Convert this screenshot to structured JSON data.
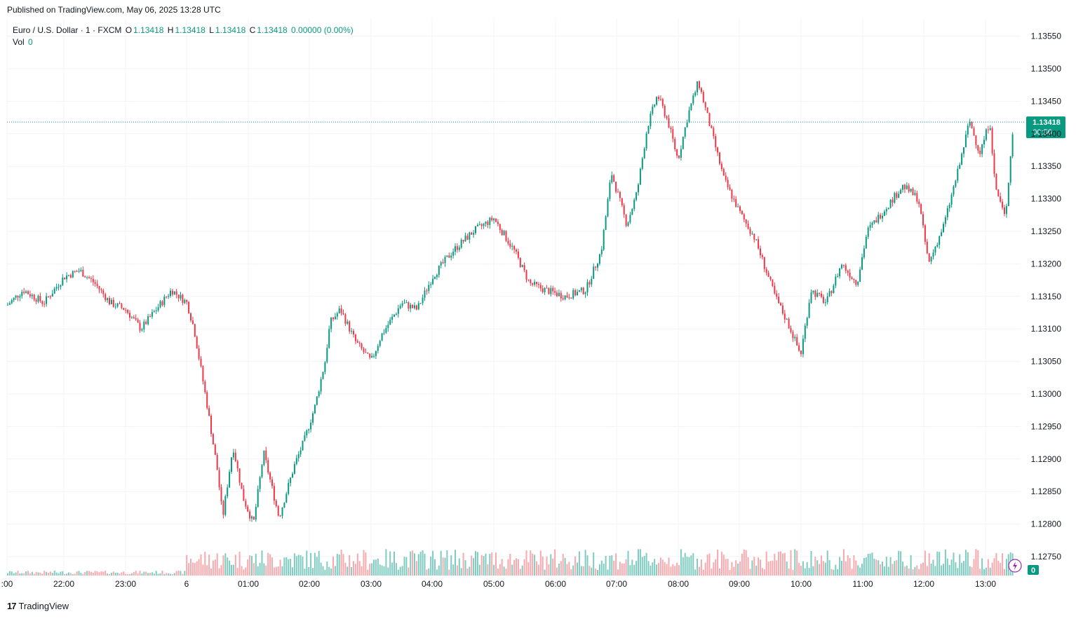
{
  "header": {
    "published": "Published on TradingView.com, May 06, 2025 13:28 UTC"
  },
  "legend": {
    "symbol": "Euro / U.S. Dollar · 1 · FXCM",
    "o_label": "O",
    "o_value": "1.13418",
    "h_label": "H",
    "h_value": "1.13418",
    "l_label": "L",
    "l_value": "1.13418",
    "c_label": "C",
    "c_value": "1.13418",
    "change": "0.00000 (0.00%)",
    "vol_label": "Vol",
    "vol_value": "0"
  },
  "price_label": {
    "price": "1.13418",
    "countdown": "00:56"
  },
  "vol_badge": "0",
  "footer": {
    "brand": "TradingView"
  },
  "colors": {
    "up": "#089981",
    "down": "#f23645",
    "vol_up": "#7fcbc0",
    "vol_down": "#f7a9ae",
    "grid": "#f0f3fa"
  },
  "chart_data": {
    "type": "candlestick",
    "symbol": "EURUSD",
    "interval": "1m",
    "y_ticks": [
      "1.13550",
      "1.13500",
      "1.13450",
      "1.13400",
      "1.13350",
      "1.13300",
      "1.13250",
      "1.13200",
      "1.13150",
      "1.13100",
      "1.13050",
      "1.13000",
      "1.12950",
      "1.12900",
      "1.12850",
      "1.12800",
      "1.12750"
    ],
    "x_ticks": [
      ":00",
      "22:00",
      "23:00",
      "6",
      "01:00",
      "02:00",
      "03:00",
      "04:00",
      "05:00",
      "06:00",
      "07:00",
      "08:00",
      "09:00",
      "10:00",
      "11:00",
      "12:00",
      "13:00"
    ],
    "ylim": [
      1.1272,
      1.1357
    ],
    "last_price": 1.13418,
    "path": [
      [
        "21:00",
        1.1313
      ],
      [
        "21:20",
        1.1316
      ],
      [
        "21:40",
        1.1314
      ],
      [
        "22:00",
        1.1318
      ],
      [
        "22:15",
        1.1319
      ],
      [
        "22:30",
        1.1317
      ],
      [
        "22:45",
        1.1314
      ],
      [
        "23:00",
        1.1313
      ],
      [
        "23:15",
        1.131
      ],
      [
        "23:30",
        1.1313
      ],
      [
        "23:45",
        1.1316
      ],
      [
        "00:00",
        1.1314
      ],
      [
        "00:07",
        1.131
      ],
      [
        "00:20",
        1.1298
      ],
      [
        "00:30",
        1.1288
      ],
      [
        "00:35",
        1.1281
      ],
      [
        "00:45",
        1.1292
      ],
      [
        "00:55",
        1.1284
      ],
      [
        "01:05",
        1.128
      ],
      [
        "01:15",
        1.1291
      ],
      [
        "01:30",
        1.1281
      ],
      [
        "01:45",
        1.1289
      ],
      [
        "01:55",
        1.1293
      ],
      [
        "02:05",
        1.1298
      ],
      [
        "02:15",
        1.1305
      ],
      [
        "02:20",
        1.1311
      ],
      [
        "02:30",
        1.1313
      ],
      [
        "02:45",
        1.1308
      ],
      [
        "03:00",
        1.1305
      ],
      [
        "03:10",
        1.1309
      ],
      [
        "03:30",
        1.1314
      ],
      [
        "03:45",
        1.1313
      ],
      [
        "04:00",
        1.1318
      ],
      [
        "04:20",
        1.1322
      ],
      [
        "04:40",
        1.1325
      ],
      [
        "05:00",
        1.1327
      ],
      [
        "05:20",
        1.1322
      ],
      [
        "05:35",
        1.1317
      ],
      [
        "05:50",
        1.1316
      ],
      [
        "06:10",
        1.1315
      ],
      [
        "06:30",
        1.1316
      ],
      [
        "06:45",
        1.1322
      ],
      [
        "06:55",
        1.1334
      ],
      [
        "07:10",
        1.1326
      ],
      [
        "07:20",
        1.1331
      ],
      [
        "07:30",
        1.1341
      ],
      [
        "07:40",
        1.1346
      ],
      [
        "07:50",
        1.1342
      ],
      [
        "08:00",
        1.1336
      ],
      [
        "08:10",
        1.1343
      ],
      [
        "08:20",
        1.1348
      ],
      [
        "08:30",
        1.1342
      ],
      [
        "08:45",
        1.1333
      ],
      [
        "09:00",
        1.1328
      ],
      [
        "09:15",
        1.1324
      ],
      [
        "09:35",
        1.1315
      ],
      [
        "09:50",
        1.131
      ],
      [
        "10:00",
        1.1306
      ],
      [
        "10:10",
        1.1316
      ],
      [
        "10:25",
        1.1314
      ],
      [
        "10:40",
        1.132
      ],
      [
        "10:55",
        1.1317
      ],
      [
        "11:05",
        1.1325
      ],
      [
        "11:20",
        1.1328
      ],
      [
        "11:40",
        1.1332
      ],
      [
        "11:55",
        1.133
      ],
      [
        "12:05",
        1.132
      ],
      [
        "12:20",
        1.1326
      ],
      [
        "12:35",
        1.1335
      ],
      [
        "12:45",
        1.1342
      ],
      [
        "12:55",
        1.1337
      ],
      [
        "13:05",
        1.1342
      ],
      [
        "13:10",
        1.1332
      ],
      [
        "13:20",
        1.1327
      ],
      [
        "13:28",
        1.13418
      ]
    ]
  }
}
